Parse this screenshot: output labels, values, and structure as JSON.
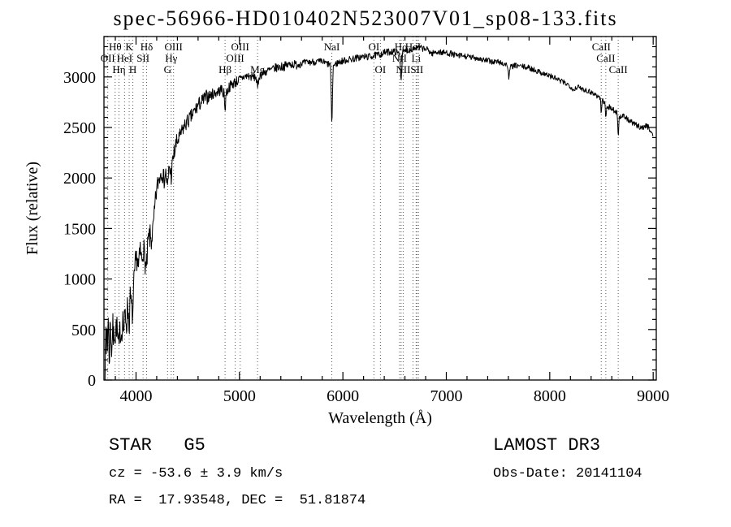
{
  "title": "spec-56966-HD010402N523007V01_sp08-133.fits",
  "annotations": {
    "class_label": "STAR   G5",
    "survey": "LAMOST DR3",
    "cz": "cz = -53.6 ± 3.9 km/s",
    "obs_date": "Obs-Date: 20141104",
    "ra_dec": "RA =  17.93548, DEC =  51.81874"
  },
  "chart_data": {
    "type": "line",
    "title": "spec-56966-HD010402N523007V01_sp08-133.fits",
    "xlabel": "Wavelength (Å)",
    "ylabel": "Flux (relative)",
    "xlim": [
      3690,
      9030
    ],
    "ylim": [
      0,
      3400
    ],
    "x_ticks": [
      4000,
      5000,
      6000,
      7000,
      8000,
      9000
    ],
    "y_ticks": [
      0,
      500,
      1000,
      1500,
      2000,
      2500,
      3000
    ],
    "x_minor_step": 200,
    "y_minor_step": 100,
    "grid": false,
    "legend": "none",
    "colors": {
      "spectrum": "#000000",
      "line_marker": "#9b3b3b",
      "frame": "#000000"
    },
    "series": [
      {
        "name": "spectrum",
        "x": [
          3700,
          3705,
          3712,
          3718,
          3724,
          3730,
          3736,
          3742,
          3750,
          3758,
          3766,
          3774,
          3782,
          3790,
          3800,
          3812,
          3824,
          3835,
          3846,
          3858,
          3870,
          3882,
          3895,
          3910,
          3920,
          3933,
          3945,
          3958,
          3969,
          3980,
          3995,
          4010,
          4025,
          4040,
          4055,
          4070,
          4085,
          4101,
          4115,
          4130,
          4150,
          4170,
          4190,
          4210,
          4230,
          4250,
          4270,
          4290,
          4305,
          4320,
          4340,
          4360,
          4385,
          4410,
          4440,
          4470,
          4500,
          4530,
          4560,
          4600,
          4640,
          4680,
          4720,
          4760,
          4800,
          4830,
          4853,
          4861,
          4869,
          4900,
          4930,
          4960,
          5000,
          5040,
          5080,
          5120,
          5160,
          5175,
          5190,
          5230,
          5270,
          5310,
          5350,
          5400,
          5450,
          5500,
          5550,
          5600,
          5650,
          5700,
          5750,
          5800,
          5850,
          5880,
          5893,
          5906,
          5950,
          6000,
          6050,
          6100,
          6150,
          6200,
          6250,
          6300,
          6350,
          6400,
          6450,
          6500,
          6550,
          6563,
          6576,
          6620,
          6660,
          6700,
          6740,
          6780,
          6820,
          6860,
          6880,
          6920,
          6960,
          7000,
          7050,
          7100,
          7150,
          7200,
          7250,
          7300,
          7350,
          7400,
          7450,
          7500,
          7550,
          7590,
          7605,
          7620,
          7660,
          7700,
          7750,
          7800,
          7850,
          7900,
          7950,
          8000,
          8050,
          8100,
          8150,
          8200,
          8230,
          8260,
          8300,
          8350,
          8400,
          8450,
          8490,
          8498,
          8506,
          8534,
          8542,
          8550,
          8580,
          8620,
          8654,
          8662,
          8670,
          8700,
          8740,
          8780,
          8820,
          8860,
          8900,
          8940,
          8970,
          9000
        ],
        "y": [
          120,
          520,
          200,
          650,
          300,
          720,
          350,
          180,
          600,
          420,
          250,
          560,
          380,
          520,
          430,
          560,
          380,
          300,
          520,
          440,
          620,
          480,
          650,
          560,
          780,
          520,
          820,
          700,
          620,
          950,
          1150,
          1220,
          1100,
          1280,
          1180,
          1320,
          1200,
          1060,
          1350,
          1420,
          1380,
          1550,
          1800,
          1950,
          2020,
          2080,
          1980,
          2050,
          1880,
          2120,
          2020,
          2200,
          2320,
          2380,
          2450,
          2520,
          2560,
          2600,
          2650,
          2720,
          2760,
          2800,
          2820,
          2840,
          2860,
          2880,
          2820,
          2650,
          2830,
          2900,
          2930,
          2950,
          2970,
          3000,
          3010,
          3000,
          3000,
          2880,
          3010,
          3040,
          3060,
          3070,
          3090,
          3100,
          3110,
          3130,
          3120,
          3140,
          3140,
          3150,
          3150,
          3150,
          3130,
          3120,
          2480,
          3110,
          3140,
          3160,
          3170,
          3180,
          3190,
          3200,
          3200,
          3210,
          3220,
          3240,
          3250,
          3250,
          3230,
          2950,
          3240,
          3260,
          3270,
          3290,
          3290,
          3280,
          3270,
          3230,
          3240,
          3250,
          3240,
          3240,
          3230,
          3210,
          3210,
          3200,
          3190,
          3190,
          3170,
          3160,
          3150,
          3150,
          3130,
          3120,
          2990,
          3100,
          3110,
          3110,
          3100,
          3090,
          3070,
          3050,
          3030,
          3010,
          2990,
          2960,
          2940,
          2910,
          2870,
          2900,
          2890,
          2870,
          2850,
          2820,
          2790,
          2620,
          2770,
          2740,
          2570,
          2710,
          2700,
          2670,
          2640,
          2380,
          2590,
          2620,
          2590,
          2560,
          2530,
          2510,
          2500,
          2520,
          2480,
          2420
        ]
      }
    ],
    "noise_profile": [
      {
        "max_wavelength": 3950,
        "amplitude": 150
      },
      {
        "max_wavelength": 4150,
        "amplitude": 130
      },
      {
        "max_wavelength": 4400,
        "amplitude": 100
      },
      {
        "max_wavelength": 4700,
        "amplitude": 75
      },
      {
        "max_wavelength": 5000,
        "amplitude": 55
      },
      {
        "max_wavelength": 5600,
        "amplitude": 45
      },
      {
        "max_wavelength": 6500,
        "amplitude": 35
      },
      {
        "max_wavelength": 7500,
        "amplitude": 30
      },
      {
        "max_wavelength": 9030,
        "amplitude": 28
      }
    ],
    "spectral_lines": [
      {
        "label": "OII",
        "wavelength": 3727,
        "row": 2
      },
      {
        "label": "Hθ",
        "wavelength": 3798,
        "row": 1
      },
      {
        "label": "Hη",
        "wavelength": 3835,
        "row": 3
      },
      {
        "label": "HeI",
        "wavelength": 3889,
        "row": 2
      },
      {
        "label": "K",
        "wavelength": 3934,
        "row": 1
      },
      {
        "label": "H",
        "wavelength": 3969,
        "row": 3
      },
      {
        "label": "SII",
        "wavelength": 4068,
        "row": 2
      },
      {
        "label": "Hδ",
        "wavelength": 4102,
        "row": 1
      },
      {
        "label": "G",
        "wavelength": 4305,
        "row": 3
      },
      {
        "label": "Hγ",
        "wavelength": 4340,
        "row": 2
      },
      {
        "label": "OIII",
        "wavelength": 4363,
        "row": 1
      },
      {
        "label": "Hβ",
        "wavelength": 4861,
        "row": 3
      },
      {
        "label": "OIII",
        "wavelength": 4959,
        "row": 2
      },
      {
        "label": "OIII",
        "wavelength": 5007,
        "row": 1
      },
      {
        "label": "Mg",
        "wavelength": 5175,
        "row": 3
      },
      {
        "label": "NaI",
        "wavelength": 5893,
        "row": 1
      },
      {
        "label": "OI",
        "wavelength": 6300,
        "row": 1
      },
      {
        "label": "OI",
        "wavelength": 6363,
        "row": 3
      },
      {
        "label": "NII",
        "wavelength": 6548,
        "row": 2
      },
      {
        "label": "Hα",
        "wavelength": 6563,
        "row": 1
      },
      {
        "label": "NII",
        "wavelength": 6583,
        "row": 3
      },
      {
        "label": "HeI",
        "wavelength": 6678,
        "row": 1
      },
      {
        "label": "Li",
        "wavelength": 6708,
        "row": 2
      },
      {
        "label": "SII",
        "wavelength": 6716,
        "row": 3
      },
      {
        "label": "",
        "wavelength": 6731,
        "row": 3
      },
      {
        "label": "CaII",
        "wavelength": 8498,
        "row": 1
      },
      {
        "label": "CaII",
        "wavelength": 8542,
        "row": 2
      },
      {
        "label": "CaII",
        "wavelength": 8662,
        "row": 3
      }
    ]
  }
}
